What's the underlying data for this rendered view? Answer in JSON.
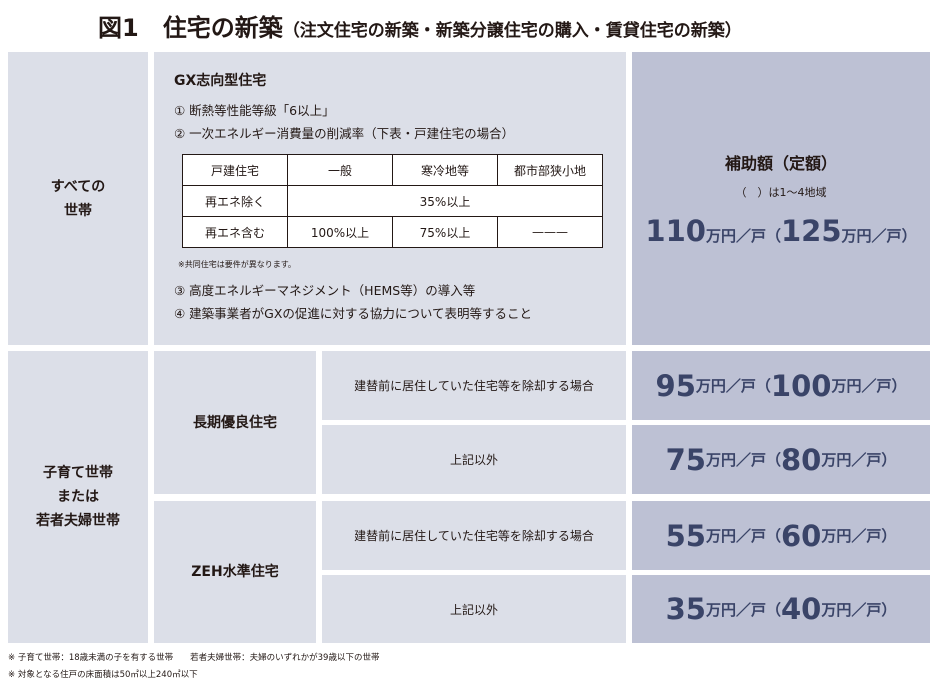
{
  "title": {
    "main": "図1　住宅の新築",
    "sub": "（注文住宅の新築・新築分譲住宅の購入・賃貸住宅の新築）"
  },
  "all_households": {
    "label": "すべての\n世帯"
  },
  "gx": {
    "heading": "GX志向型住宅",
    "items": [
      "① 断熱等性能等級「6以上」",
      "② 一次エネルギー消費量の削減率（下表・戸建住宅の場合）",
      "③ 高度エネルギーマネジメント（HEMS等）の導入等",
      "④ 建築事業者がGXの促進に対する協力について表明等すること"
    ],
    "table": {
      "headers": [
        "戸建住宅",
        "一般",
        "寒冷地等",
        "都市部狭小地"
      ],
      "row1": [
        "再エネ除く",
        "35%以上"
      ],
      "row2": [
        "再エネ含む",
        "100%以上",
        "75%以上",
        "———"
      ]
    },
    "note": "※共同住宅は要件が異なります。"
  },
  "subsidy": {
    "heading": "補助額（定額）",
    "paren_note": "（　）は1～4地域",
    "unit": "万円／戸",
    "open": "（",
    "close": "）"
  },
  "amounts": {
    "gx": [
      "110",
      "125"
    ],
    "long_rebuild": [
      "95",
      "100"
    ],
    "long_other": [
      "75",
      "80"
    ],
    "zeh_rebuild": [
      "55",
      "60"
    ],
    "zeh_other": [
      "35",
      "40"
    ]
  },
  "young_households": {
    "label": "子育て世帯\nまたは\n若者夫婦世帯"
  },
  "long_term": {
    "label": "長期優良住宅"
  },
  "zeh": {
    "label": "ZEH水準住宅"
  },
  "conditions": {
    "rebuild": "建替前に居住していた住宅等を除却する場合",
    "other": "上記以外"
  },
  "footnotes": [
    "※ 子育て世帯：18歳未満の子を有する世帯　　若者夫婦世帯：夫婦のいずれかが39歳以下の世帯",
    "※ 対象となる住戸の床面積は50㎡以上240㎡以下"
  ],
  "colors": {
    "cell": "#dcdfe8",
    "amount_cell": "#bdc1d4",
    "amount_text": "#3a4468"
  }
}
